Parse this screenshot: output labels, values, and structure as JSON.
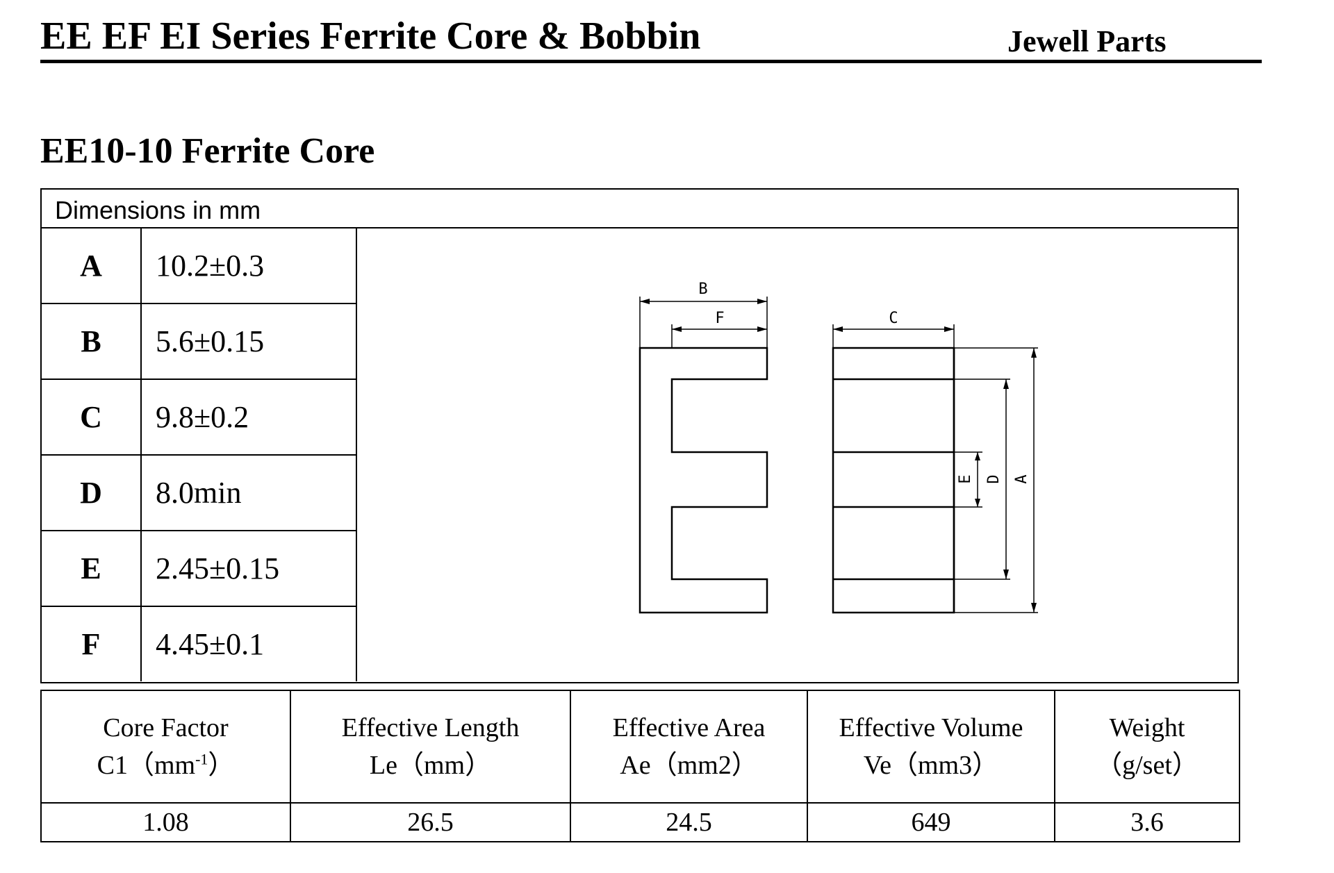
{
  "header": {
    "title": "EE EF EI Series Ferrite Core & Bobbin",
    "brand": "Jewell Parts"
  },
  "section": {
    "title": "EE10-10 Ferrite Core"
  },
  "dimensions": {
    "caption": "Dimensions in mm",
    "rows": [
      {
        "letter": "A",
        "value": "10.2±0.3"
      },
      {
        "letter": "B",
        "value": "5.6±0.15"
      },
      {
        "letter": "C",
        "value": "9.8±0.2"
      },
      {
        "letter": "D",
        "value": "8.0min"
      },
      {
        "letter": "E",
        "value": "2.45±0.15"
      },
      {
        "letter": "F",
        "value": "4.45±0.1"
      }
    ]
  },
  "diagram": {
    "labels": {
      "b": "B",
      "f": "F",
      "c": "C",
      "e": "E",
      "d": "D",
      "a": "A"
    }
  },
  "properties": {
    "columns": [
      {
        "line1": "Core Factor",
        "line2_prefix": "C1（mm",
        "line2_sup": "-1",
        "line2_suffix": "）",
        "value": "1.08"
      },
      {
        "line1": "Effective Length",
        "line2": "Le（mm）",
        "value": "26.5"
      },
      {
        "line1": "Effective Area",
        "line2": "Ae（mm2）",
        "value": "24.5"
      },
      {
        "line1": "Effective Volume",
        "line2": "Ve（mm3）",
        "value": "649"
      },
      {
        "line1": "Weight",
        "line2": "（g/set）",
        "value": "3.6"
      }
    ]
  }
}
